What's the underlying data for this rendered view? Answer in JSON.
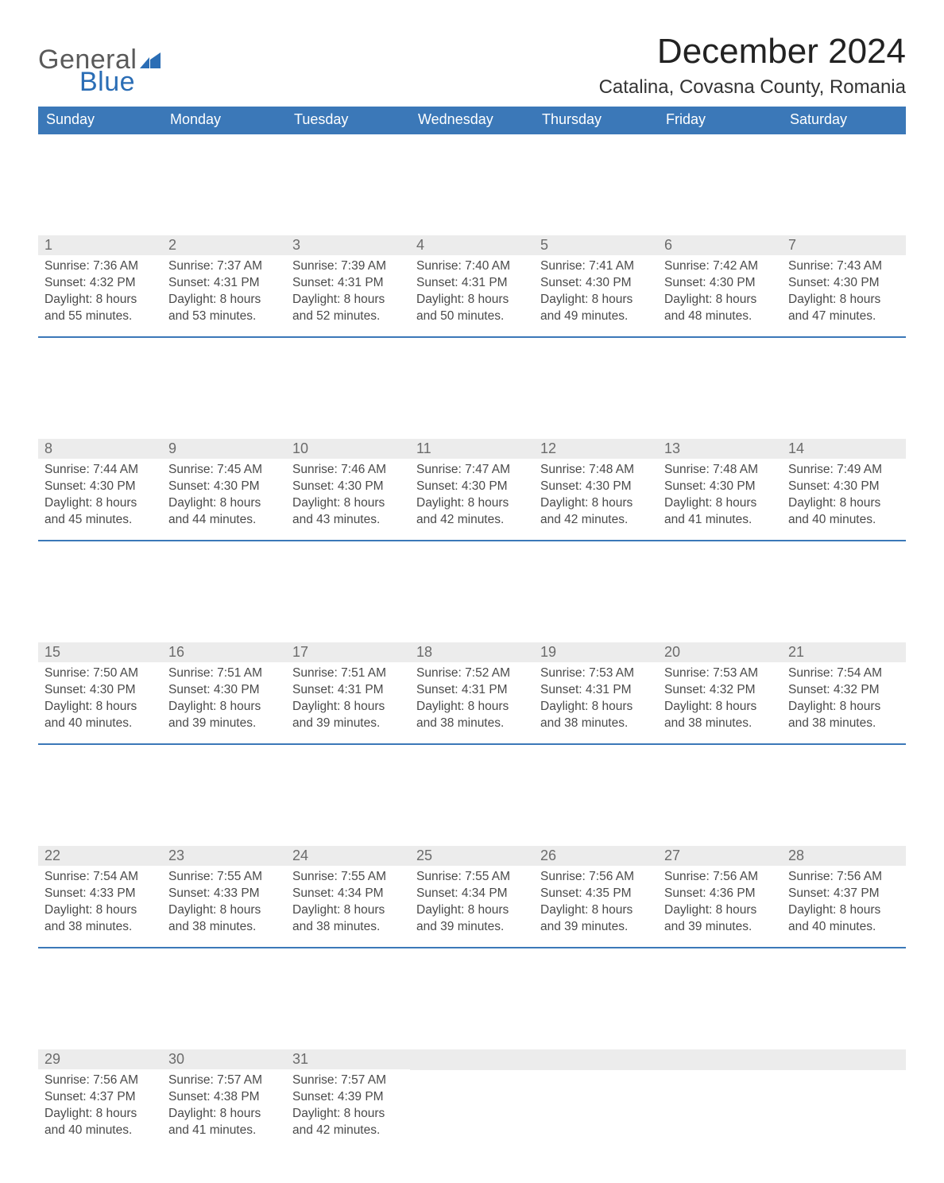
{
  "logo": {
    "word1": "General",
    "word2": "Blue"
  },
  "title": "December 2024",
  "location": "Catalina, Covasna County, Romania",
  "colors": {
    "header_bg": "#3b78b8",
    "row_accent": "#3b78b8",
    "daynum_bg": "#ececec",
    "logo_gray": "#5a5a5a",
    "logo_blue": "#2a6db5"
  },
  "weekdays": [
    "Sunday",
    "Monday",
    "Tuesday",
    "Wednesday",
    "Thursday",
    "Friday",
    "Saturday"
  ],
  "labels": {
    "sunrise": "Sunrise",
    "sunset": "Sunset",
    "daylight": "Daylight"
  },
  "days": [
    {
      "n": 1,
      "sunrise": "7:36 AM",
      "sunset": "4:32 PM",
      "dl_h": 8,
      "dl_m": 55
    },
    {
      "n": 2,
      "sunrise": "7:37 AM",
      "sunset": "4:31 PM",
      "dl_h": 8,
      "dl_m": 53
    },
    {
      "n": 3,
      "sunrise": "7:39 AM",
      "sunset": "4:31 PM",
      "dl_h": 8,
      "dl_m": 52
    },
    {
      "n": 4,
      "sunrise": "7:40 AM",
      "sunset": "4:31 PM",
      "dl_h": 8,
      "dl_m": 50
    },
    {
      "n": 5,
      "sunrise": "7:41 AM",
      "sunset": "4:30 PM",
      "dl_h": 8,
      "dl_m": 49
    },
    {
      "n": 6,
      "sunrise": "7:42 AM",
      "sunset": "4:30 PM",
      "dl_h": 8,
      "dl_m": 48
    },
    {
      "n": 7,
      "sunrise": "7:43 AM",
      "sunset": "4:30 PM",
      "dl_h": 8,
      "dl_m": 47
    },
    {
      "n": 8,
      "sunrise": "7:44 AM",
      "sunset": "4:30 PM",
      "dl_h": 8,
      "dl_m": 45
    },
    {
      "n": 9,
      "sunrise": "7:45 AM",
      "sunset": "4:30 PM",
      "dl_h": 8,
      "dl_m": 44
    },
    {
      "n": 10,
      "sunrise": "7:46 AM",
      "sunset": "4:30 PM",
      "dl_h": 8,
      "dl_m": 43
    },
    {
      "n": 11,
      "sunrise": "7:47 AM",
      "sunset": "4:30 PM",
      "dl_h": 8,
      "dl_m": 42
    },
    {
      "n": 12,
      "sunrise": "7:48 AM",
      "sunset": "4:30 PM",
      "dl_h": 8,
      "dl_m": 42
    },
    {
      "n": 13,
      "sunrise": "7:48 AM",
      "sunset": "4:30 PM",
      "dl_h": 8,
      "dl_m": 41
    },
    {
      "n": 14,
      "sunrise": "7:49 AM",
      "sunset": "4:30 PM",
      "dl_h": 8,
      "dl_m": 40
    },
    {
      "n": 15,
      "sunrise": "7:50 AM",
      "sunset": "4:30 PM",
      "dl_h": 8,
      "dl_m": 40
    },
    {
      "n": 16,
      "sunrise": "7:51 AM",
      "sunset": "4:30 PM",
      "dl_h": 8,
      "dl_m": 39
    },
    {
      "n": 17,
      "sunrise": "7:51 AM",
      "sunset": "4:31 PM",
      "dl_h": 8,
      "dl_m": 39
    },
    {
      "n": 18,
      "sunrise": "7:52 AM",
      "sunset": "4:31 PM",
      "dl_h": 8,
      "dl_m": 38
    },
    {
      "n": 19,
      "sunrise": "7:53 AM",
      "sunset": "4:31 PM",
      "dl_h": 8,
      "dl_m": 38
    },
    {
      "n": 20,
      "sunrise": "7:53 AM",
      "sunset": "4:32 PM",
      "dl_h": 8,
      "dl_m": 38
    },
    {
      "n": 21,
      "sunrise": "7:54 AM",
      "sunset": "4:32 PM",
      "dl_h": 8,
      "dl_m": 38
    },
    {
      "n": 22,
      "sunrise": "7:54 AM",
      "sunset": "4:33 PM",
      "dl_h": 8,
      "dl_m": 38
    },
    {
      "n": 23,
      "sunrise": "7:55 AM",
      "sunset": "4:33 PM",
      "dl_h": 8,
      "dl_m": 38
    },
    {
      "n": 24,
      "sunrise": "7:55 AM",
      "sunset": "4:34 PM",
      "dl_h": 8,
      "dl_m": 38
    },
    {
      "n": 25,
      "sunrise": "7:55 AM",
      "sunset": "4:34 PM",
      "dl_h": 8,
      "dl_m": 39
    },
    {
      "n": 26,
      "sunrise": "7:56 AM",
      "sunset": "4:35 PM",
      "dl_h": 8,
      "dl_m": 39
    },
    {
      "n": 27,
      "sunrise": "7:56 AM",
      "sunset": "4:36 PM",
      "dl_h": 8,
      "dl_m": 39
    },
    {
      "n": 28,
      "sunrise": "7:56 AM",
      "sunset": "4:37 PM",
      "dl_h": 8,
      "dl_m": 40
    },
    {
      "n": 29,
      "sunrise": "7:56 AM",
      "sunset": "4:37 PM",
      "dl_h": 8,
      "dl_m": 40
    },
    {
      "n": 30,
      "sunrise": "7:57 AM",
      "sunset": "4:38 PM",
      "dl_h": 8,
      "dl_m": 41
    },
    {
      "n": 31,
      "sunrise": "7:57 AM",
      "sunset": "4:39 PM",
      "dl_h": 8,
      "dl_m": 42
    }
  ],
  "layout": {
    "start_weekday": 0,
    "rows": 5,
    "cols": 7
  }
}
